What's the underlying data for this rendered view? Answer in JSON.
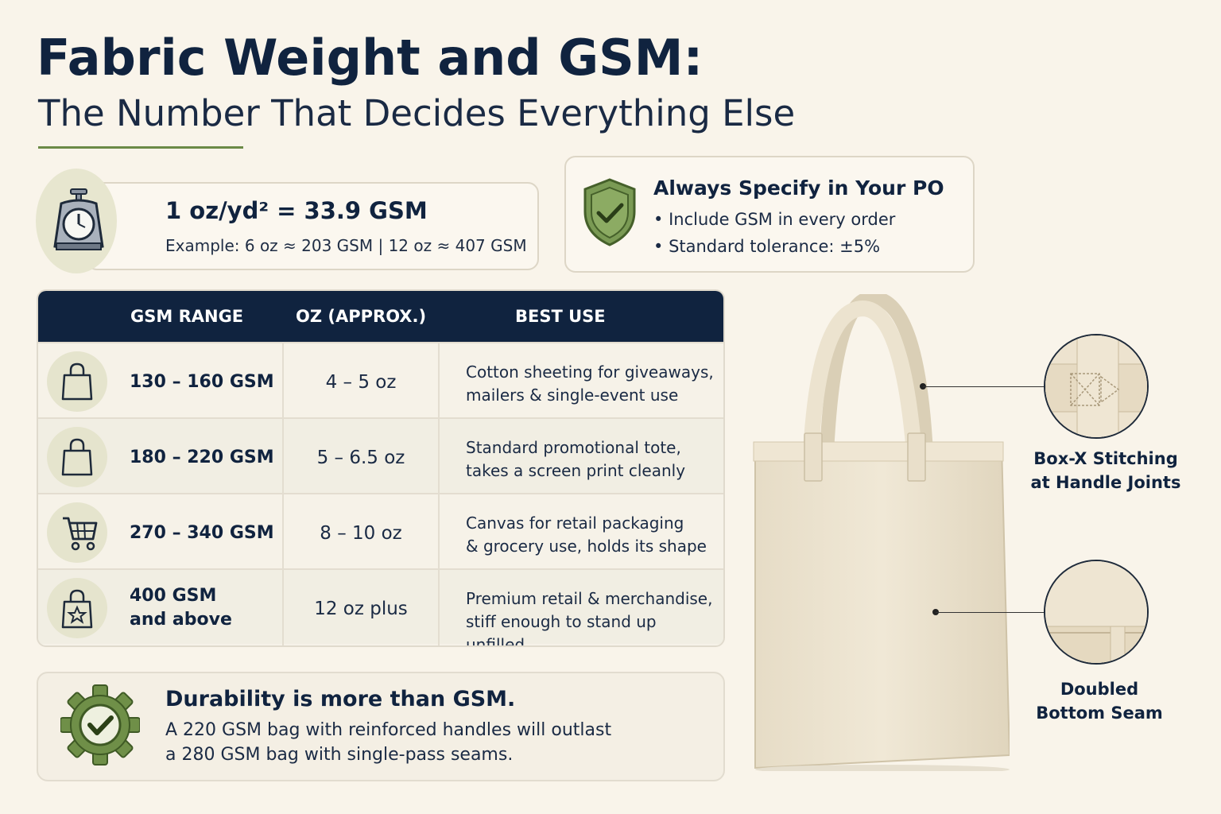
{
  "header": {
    "title": "Fabric Weight and GSM:",
    "subtitle": "The Number That Decides Everything Else"
  },
  "conversion": {
    "icon": "scale-icon",
    "main": "1 oz/yd² = 33.9 GSM",
    "example": "Example: 6 oz ≈ 203 GSM  |  12 oz ≈ 407 GSM"
  },
  "po": {
    "icon": "shield-check-icon",
    "title": "Always Specify in Your PO",
    "items": [
      "Include GSM in every order",
      "Standard tolerance:  ±5%"
    ]
  },
  "table": {
    "headers": [
      "GSM RANGE",
      "OZ (APPROX.)",
      "BEST USE"
    ],
    "rows": [
      {
        "icon": "tote-bag-icon",
        "gsm": "130 – 160 GSM",
        "oz": "4 – 5 oz",
        "use1": "Cotton sheeting for giveaways,",
        "use2": "mailers & single-event use"
      },
      {
        "icon": "tote-bag-icon",
        "gsm": "180 – 220 GSM",
        "oz": "5 – 6.5 oz",
        "use1": "Standard promotional tote,",
        "use2": "takes a screen print cleanly"
      },
      {
        "icon": "shopping-cart-icon",
        "gsm": "270 – 340 GSM",
        "oz": "8 – 10 oz",
        "use1": "Canvas for retail packaging",
        "use2": "& grocery use, holds its shape"
      },
      {
        "icon": "star-bag-icon",
        "gsm1": "400 GSM",
        "gsm2": "and above",
        "oz": "12 oz plus",
        "use1": "Premium retail & merchandise,",
        "use2": "stiff enough to stand up unfilled"
      }
    ]
  },
  "durability": {
    "icon": "gear-check-icon",
    "title": "Durability is more than GSM.",
    "line1": "A 220 GSM bag with reinforced handles will outlast",
    "line2": "a 280 GSM bag with single-pass seams."
  },
  "callouts": [
    {
      "line1": "Box-X Stitching",
      "line2": "at Handle Joints"
    },
    {
      "line1": "Doubled",
      "line2": "Bottom Seam"
    }
  ],
  "colors": {
    "navy": "#10233f",
    "olive": "#6b8a46",
    "cream": "#f9f4ea",
    "canvas": "#ece2cc"
  }
}
